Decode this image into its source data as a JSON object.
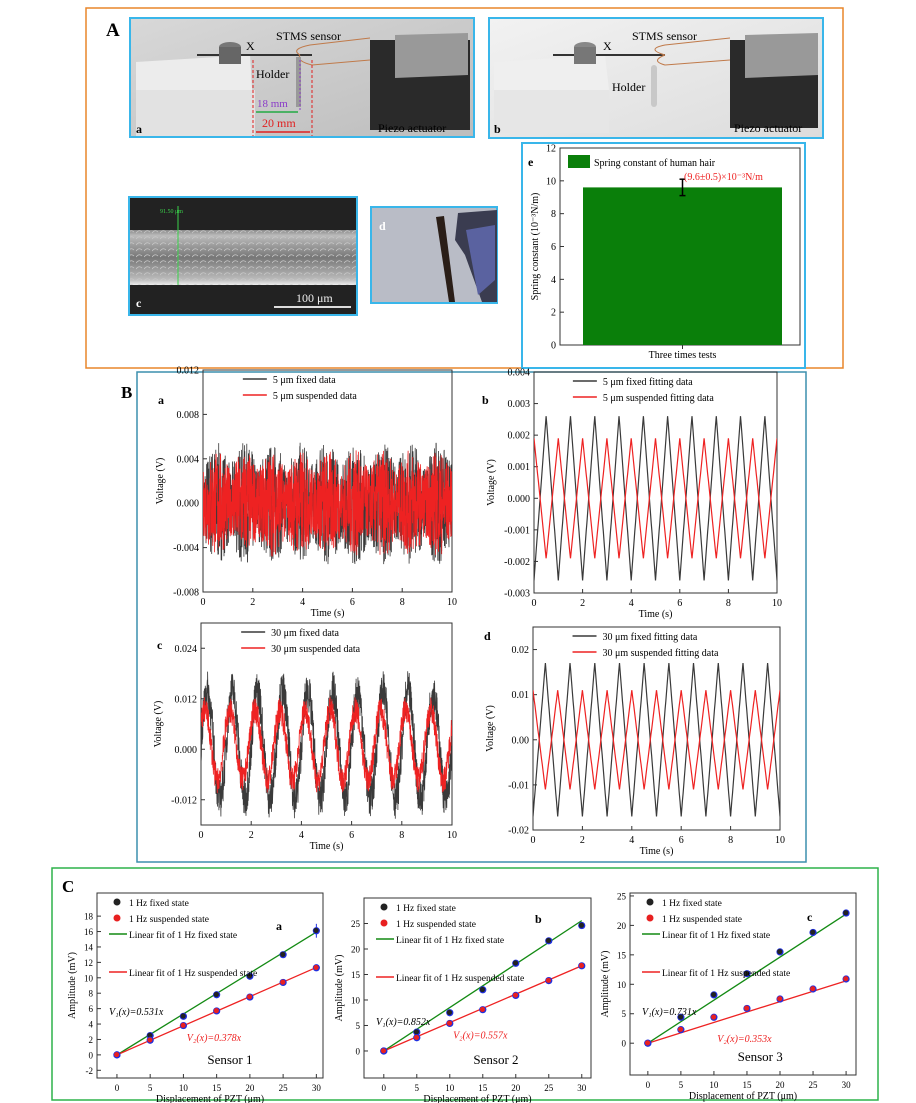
{
  "colors": {
    "panel_A_border": "#e8852a",
    "panel_B_border": "#3c8fad",
    "panel_C_border": "#2db24a",
    "subpanel_border": "#39b6ea",
    "fixed": "#3a3a3a",
    "suspended": "#ee2222",
    "fit_fixed": "#138a13",
    "fit_suspended": "#ee2222",
    "bar": "#0a7f0a",
    "marker_edge": "#1f2fe0"
  },
  "panel_A": {
    "label": "A",
    "a": {
      "label": "a",
      "sensor": "STMS sensor",
      "x_mark": "X",
      "holder": "Holder",
      "dist_18": "18 mm",
      "dist_20": "20 mm",
      "piezo": "Piezo actuator"
    },
    "b": {
      "label": "b",
      "sensor": "STMS sensor",
      "x_mark": "X",
      "holder": "Holder",
      "piezo": "Piezo actuator"
    },
    "c": {
      "label": "c",
      "measure": "91.50 μm",
      "scale": "100 μm"
    },
    "d": {
      "label": "d"
    }
  },
  "panel_B": {
    "label": "B"
  },
  "panel_C": {
    "label": "C"
  },
  "chart_data": [
    {
      "id": "Ae",
      "panel": "e",
      "type": "bar",
      "categories": [
        "Three times tests"
      ],
      "values": [
        9.6
      ],
      "error": [
        0.5
      ],
      "legend": "Spring constant of human hair",
      "annotation": "(9.6±0.5)×10⁻³N/m",
      "ylabel": "Spring constant (10⁻³N/m)",
      "xlabel": "",
      "ylim": [
        0,
        12
      ],
      "yticks": [
        0,
        2,
        4,
        6,
        8,
        10,
        12
      ],
      "legend_position": "top"
    },
    {
      "id": "Ba",
      "panel": "a",
      "type": "line",
      "xlabel": "Time (s)",
      "ylabel": "Voltage (V)",
      "xlim": [
        0,
        10
      ],
      "ylim": [
        -0.008,
        0.012
      ],
      "xticks": [
        0,
        2,
        4,
        6,
        8,
        10
      ],
      "yticks": [
        "-0.008",
        "-0.004",
        "0.000",
        "0.004",
        "0.008",
        "0.012"
      ],
      "legend_position": "top",
      "series": [
        {
          "name": "5 μm fixed data",
          "kind": "noisy",
          "frequency_hz": 1,
          "amplitude": 0.0055,
          "color_key": "fixed"
        },
        {
          "name": "5 μm suspended data",
          "kind": "noisy",
          "frequency_hz": 1,
          "amplitude": 0.0048,
          "color_key": "suspended"
        }
      ]
    },
    {
      "id": "Bb",
      "panel": "b",
      "type": "line",
      "xlabel": "Time (s)",
      "ylabel": "Voltage (V)",
      "xlim": [
        0,
        10
      ],
      "ylim": [
        -0.003,
        0.004
      ],
      "xticks": [
        0,
        2,
        4,
        6,
        8,
        10
      ],
      "yticks": [
        "-0.003",
        "-0.002",
        "-0.001",
        "0.000",
        "0.001",
        "0.002",
        "0.003",
        "0.004"
      ],
      "legend_position": "top",
      "series": [
        {
          "name": "5 μm fixed fitting data",
          "kind": "triangle",
          "frequency_hz": 1,
          "amplitude": 0.0026,
          "phase": 0,
          "color_key": "fixed"
        },
        {
          "name": "5 μm suspended fitting data",
          "kind": "triangle",
          "frequency_hz": 1,
          "amplitude": 0.0019,
          "phase": 0.5,
          "color_key": "suspended"
        }
      ]
    },
    {
      "id": "Bc",
      "panel": "c",
      "type": "line",
      "xlabel": "Time (s)",
      "ylabel": "Voltage (V)",
      "xlim": [
        0,
        10
      ],
      "ylim": [
        -0.018,
        0.03
      ],
      "xticks": [
        0,
        2,
        4,
        6,
        8,
        10
      ],
      "yticks": [
        "-0.012",
        "0.000",
        "0.012",
        "0.024"
      ],
      "legend_position": "top",
      "series": [
        {
          "name": "30 μm fixed data",
          "kind": "noisy_sine",
          "frequency_hz": 1,
          "amplitude": 0.016,
          "color_key": "fixed"
        },
        {
          "name": "30 μm suspended data",
          "kind": "noisy_sine",
          "frequency_hz": 1,
          "amplitude": 0.0105,
          "color_key": "suspended"
        }
      ]
    },
    {
      "id": "Bd",
      "panel": "d",
      "type": "line",
      "xlabel": "Time (s)",
      "ylabel": "Voltage (V)",
      "xlim": [
        0,
        10
      ],
      "ylim": [
        -0.02,
        0.025
      ],
      "xticks": [
        0,
        2,
        4,
        6,
        8,
        10
      ],
      "yticks": [
        "-0.02",
        "-0.01",
        "0.00",
        "0.01",
        "0.02"
      ],
      "legend_position": "top",
      "series": [
        {
          "name": "30 μm fixed fitting data",
          "kind": "triangle",
          "frequency_hz": 1,
          "amplitude": 0.017,
          "phase": 0,
          "color_key": "fixed"
        },
        {
          "name": "30 μm suspended fitting data",
          "kind": "triangle",
          "frequency_hz": 1,
          "amplitude": 0.011,
          "phase": 0.5,
          "color_key": "suspended"
        }
      ]
    },
    {
      "id": "Ca",
      "panel": "a",
      "type": "scatter",
      "title": "Sensor 1",
      "xlabel": "Displacement of PZT (μm)",
      "ylabel": "Amplitude (mV)",
      "xlim": [
        -3,
        31
      ],
      "ylim": [
        -3,
        21
      ],
      "xticks": [
        0,
        5,
        10,
        15,
        20,
        25,
        30
      ],
      "yticks": [
        -2,
        0,
        2,
        4,
        6,
        8,
        10,
        12,
        14,
        16,
        18
      ],
      "legend_position": "top-left",
      "x": [
        0,
        5,
        10,
        15,
        20,
        25,
        30
      ],
      "series": [
        {
          "name": "1 Hz fixed state",
          "values": [
            0,
            2.5,
            5.0,
            7.8,
            10.2,
            13.0,
            16.1
          ],
          "error": [
            0.2,
            0.3,
            0.4,
            0.3,
            0.4,
            0.4,
            0.9
          ]
        },
        {
          "name": "1 Hz suspended state",
          "values": [
            0,
            1.9,
            3.8,
            5.7,
            7.5,
            9.4,
            11.3
          ],
          "error": [
            0.2,
            0.3,
            0.4,
            0.3,
            0.3,
            0.3,
            0.4
          ]
        }
      ],
      "fits": [
        {
          "name": "Linear fit of 1 Hz fixed state",
          "equation": "V₁(x)=0.531x",
          "slope": 0.531
        },
        {
          "name": "Linear fit of 1 Hz suspended state",
          "equation": "V₂(x)=0.378x",
          "slope": 0.378
        }
      ]
    },
    {
      "id": "Cb",
      "panel": "b",
      "type": "scatter",
      "title": "Sensor 2",
      "xlabel": "Displacement of PZT (μm)",
      "ylabel": "Amplitude (mV)",
      "xlim": [
        -3,
        31.4
      ],
      "ylim": [
        -5.3,
        30
      ],
      "xticks": [
        0,
        5,
        10,
        15,
        20,
        25,
        30
      ],
      "yticks": [
        0,
        5,
        10,
        15,
        20,
        25
      ],
      "legend_position": "top-left",
      "x": [
        0,
        5,
        10,
        15,
        20,
        25,
        30
      ],
      "series": [
        {
          "name": "1 Hz fixed state",
          "values": [
            0,
            3.7,
            7.5,
            12.0,
            17.2,
            21.6,
            24.6
          ],
          "error": [
            0.3,
            0.4,
            0.5,
            0.6,
            0.6,
            0.5,
            0.5
          ]
        },
        {
          "name": "1 Hz suspended state",
          "values": [
            0,
            2.6,
            5.4,
            8.1,
            10.9,
            13.8,
            16.7
          ],
          "error": [
            0.3,
            0.3,
            0.4,
            0.4,
            0.4,
            0.4,
            0.4
          ]
        }
      ],
      "fits": [
        {
          "name": "Linear fit of 1 Hz fixed state",
          "equation": "V₁(x)=0.852x",
          "slope": 0.852
        },
        {
          "name": "Linear fit of 1 Hz suspended state",
          "equation": "V₂(x)=0.557x",
          "slope": 0.557
        }
      ]
    },
    {
      "id": "Cc",
      "panel": "c",
      "type": "scatter",
      "title": "Sensor 3",
      "xlabel": "Displacement of PZT (μm)",
      "ylabel": "Amplitude (mV)",
      "xlim": [
        -2.7,
        31.5
      ],
      "ylim": [
        -5.4,
        25.5
      ],
      "xticks": [
        0,
        5,
        10,
        15,
        20,
        25,
        30
      ],
      "yticks": [
        0,
        5,
        10,
        15,
        20,
        25
      ],
      "legend_position": "top-left",
      "x": [
        0,
        5,
        10,
        15,
        20,
        25,
        30
      ],
      "series": [
        {
          "name": "1 Hz fixed state",
          "values": [
            0,
            4.4,
            8.2,
            11.8,
            15.5,
            18.8,
            22.1
          ],
          "error": [
            0.3,
            0.3,
            0.4,
            0.4,
            0.4,
            0.4,
            0.4
          ]
        },
        {
          "name": "1 Hz suspended state",
          "values": [
            0,
            2.3,
            4.4,
            5.9,
            7.5,
            9.2,
            10.9
          ],
          "error": [
            0.3,
            0.3,
            0.3,
            0.3,
            0.3,
            0.3,
            0.3
          ]
        }
      ],
      "fits": [
        {
          "name": "Linear fit of 1 Hz fixed state",
          "equation": "V₁(x)=0.731x",
          "slope": 0.731
        },
        {
          "name": "Linear fit of 1 Hz suspended state",
          "equation": "V₂(x)=0.353x",
          "slope": 0.353
        }
      ]
    }
  ]
}
